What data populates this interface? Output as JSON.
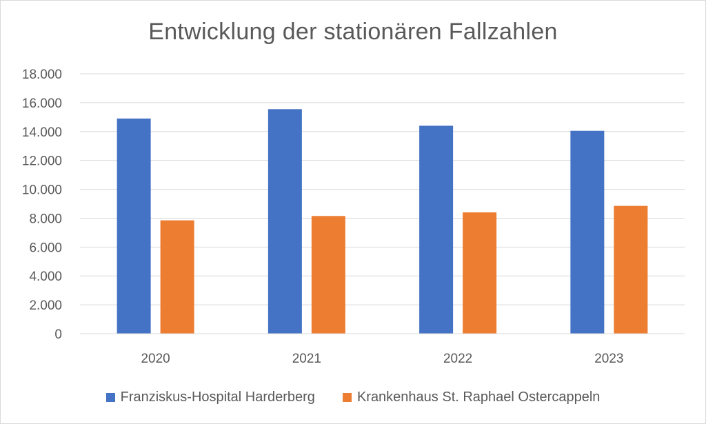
{
  "chart_data": {
    "type": "bar",
    "title": "Entwicklung der stationären Fallzahlen",
    "categories": [
      "2020",
      "2021",
      "2022",
      "2023"
    ],
    "series": [
      {
        "name": "Franziskus-Hospital Harderberg",
        "color": "#4472C4",
        "values": [
          14900,
          15550,
          14400,
          14050
        ]
      },
      {
        "name": "Krankenhaus St. Raphael Ostercappeln",
        "color": "#ED7D31",
        "values": [
          7850,
          8150,
          8400,
          8850
        ]
      }
    ],
    "ylim": [
      0,
      18000
    ],
    "yticks": [
      0,
      2000,
      4000,
      6000,
      8000,
      10000,
      12000,
      14000,
      16000,
      18000
    ],
    "ytick_labels": [
      "0",
      "2.000",
      "4.000",
      "6.000",
      "8.000",
      "10.000",
      "12.000",
      "14.000",
      "16.000",
      "18.000"
    ],
    "grid": true,
    "legend_position": "bottom"
  }
}
